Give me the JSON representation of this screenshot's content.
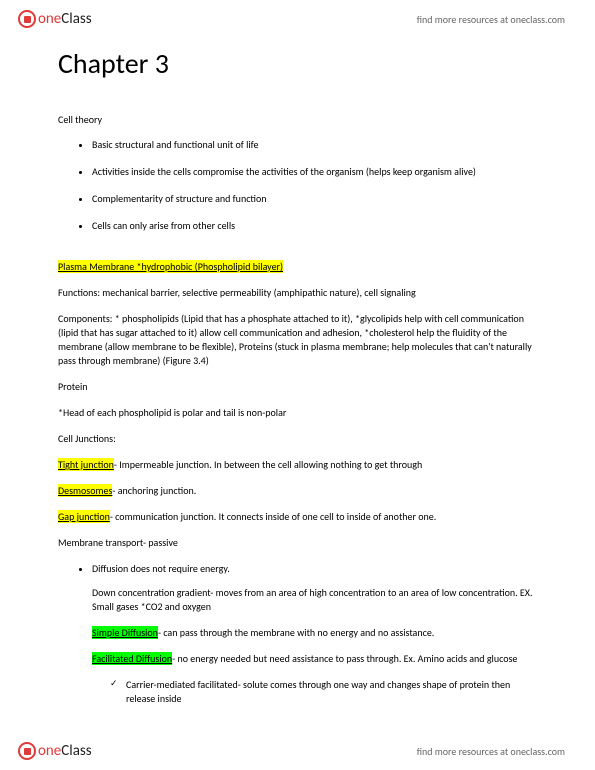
{
  "brand": {
    "one": "one",
    "class": "Class",
    "tagline": "find more resources at oneclass.com"
  },
  "title": "Chapter 3",
  "cell_theory": {
    "head": "Cell theory",
    "items": [
      "Basic structural and functional unit of life",
      "Activities inside the cells compromise the activities of the organism (helps keep organism alive)",
      "Complementarity of structure and function",
      "Cells can only arise from other cells"
    ]
  },
  "plasma": {
    "heading": "Plasma Membrane *hydrophobic (Phospholipid bilayer)",
    "functions": "Functions: mechanical barrier, selective permeability (amphipathic nature), cell signaling",
    "components": "Components: * phospholipids (Lipid that has a phosphate attached to it), *glycolipids help with cell communication (lipid that has sugar attached to it) allow cell communication and adhesion, *cholesterol help the fluidity of the membrane (allow membrane to be flexible), Proteins (stuck in plasma membrane; help molecules that can't naturally pass through membrane) (Figure 3.4)",
    "protein": "Protein",
    "head_note": "*Head of each phospholipid is polar and tail is non-polar"
  },
  "junctions": {
    "head": "Cell Junctions:",
    "tight_label": "Tight junction",
    "tight_rest": "- Impermeable junction. In between the cell allowing nothing to get through",
    "desmo_label": "Desmosomes",
    "desmo_rest": "- anchoring junction.",
    "gap_label": "Gap junction",
    "gap_rest": "- communication junction. It connects inside of one cell to inside of another one."
  },
  "transport": {
    "head": "Membrane transport- passive",
    "diffusion": "Diffusion does not require energy.",
    "down_grad": "Down concentration gradient- moves from an area of high concentration to an area of low concentration. EX. Small gases *CO2 and oxygen",
    "simple_label": "Simple Diffusion",
    "simple_rest": "- can pass through the membrane with no energy and no assistance.",
    "facilitated_label": "Facilitated Diffusion",
    "facilitated_rest": "- no energy needed but need assistance to pass through. Ex. Amino acids and glucose",
    "carrier": "Carrier-mediated facilitated- solute comes through one way and changes shape of protein then release inside"
  }
}
